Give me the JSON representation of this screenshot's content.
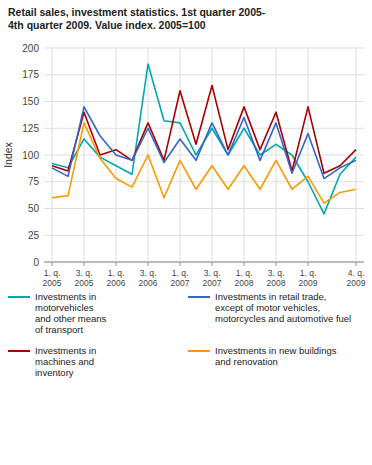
{
  "chart_data": {
    "type": "line",
    "title": "Retail sales, investment statistics. 1st quarter 2005-\n4th quarter 2009. Value index. 2005=100",
    "y_label": "Index",
    "categories": [
      "1. q.\n2005",
      null,
      "3. q.\n2005",
      null,
      "1. q.\n2006",
      null,
      "3. q.\n2006",
      null,
      "1. q.\n2007",
      null,
      "3. q.\n2007",
      null,
      "1. q.\n2008",
      null,
      "3. q.\n2008",
      null,
      "1. q.\n2009",
      null,
      null,
      "4. q.\n2009"
    ],
    "series": [
      {
        "name": "Investments in\nmotorvehicles\nand other means\nof transport",
        "color": "#00AAAA",
        "values": [
          92,
          88,
          115,
          98,
          90,
          82,
          185,
          132,
          130,
          100,
          125,
          100,
          125,
          100,
          110,
          100,
          75,
          45,
          82,
          98
        ]
      },
      {
        "name": "Investments in\nmachines and\ninventory",
        "color": "#AA0000",
        "values": [
          90,
          85,
          140,
          100,
          105,
          95,
          130,
          95,
          160,
          110,
          165,
          105,
          145,
          105,
          140,
          85,
          145,
          83,
          90,
          105
        ]
      },
      {
        "name": "Investments in retail trade,\nexcept of motor vehicles,\nmotorcycles and automotive fuel",
        "color": "#3366CC",
        "values": [
          88,
          80,
          145,
          118,
          100,
          95,
          125,
          93,
          115,
          95,
          130,
          100,
          135,
          95,
          130,
          83,
          120,
          78,
          88,
          95
        ]
      },
      {
        "name": "Investments in new buildings\nand renovation",
        "color": "#FF9900",
        "values": [
          60,
          62,
          130,
          97,
          78,
          70,
          100,
          60,
          95,
          68,
          90,
          68,
          90,
          68,
          95,
          68,
          80,
          55,
          65,
          68
        ]
      }
    ],
    "ylim": [
      0,
      200
    ],
    "yticks": [
      0,
      25,
      50,
      75,
      100,
      125,
      150,
      175,
      200
    ],
    "grid": true,
    "legend": "bottom"
  }
}
